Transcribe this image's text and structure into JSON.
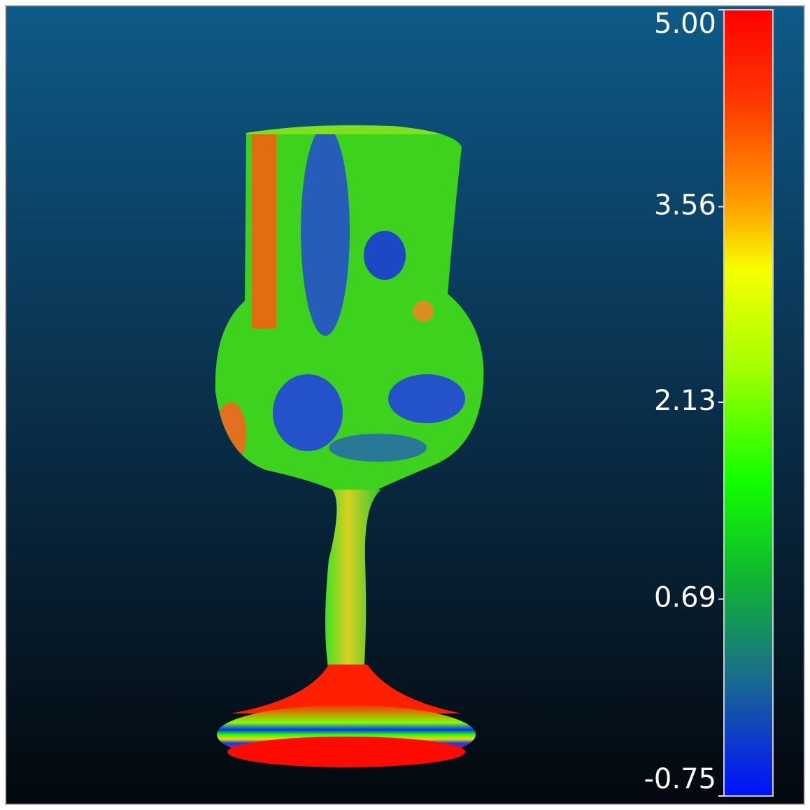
{
  "scale": {
    "lim": [
      -0.75,
      5
    ],
    "ticks": [
      {
        "value": 5,
        "label": "5.00"
      },
      {
        "value": 3.56,
        "label": "3.56"
      },
      {
        "value": 2.13,
        "label": "2.13"
      },
      {
        "value": 0.69,
        "label": "0.69"
      },
      {
        "value": -0.75,
        "label": "-0.75"
      }
    ]
  }
}
